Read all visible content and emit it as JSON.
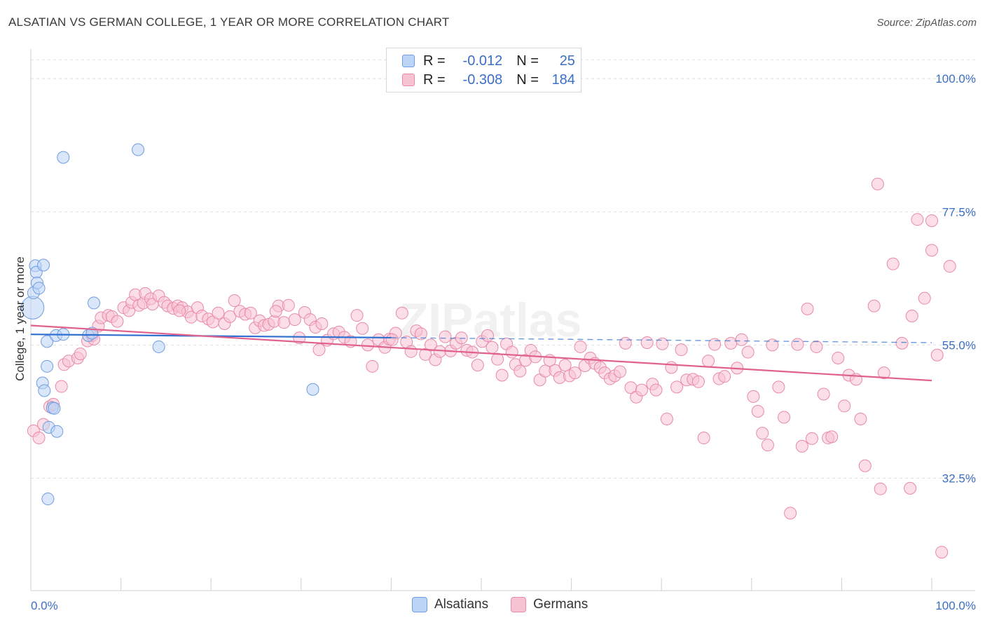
{
  "title": "ALSATIAN VS GERMAN COLLEGE, 1 YEAR OR MORE CORRELATION CHART",
  "source": "Source: ZipAtlas.com",
  "watermark": "ZIPatlas",
  "legend": {
    "rows": [
      {
        "r_label": "R =",
        "r_value": "-0.012",
        "n_label": "N =",
        "n_value": "25"
      },
      {
        "r_label": "R =",
        "r_value": "-0.308",
        "n_label": "N =",
        "n_value": "184"
      }
    ]
  },
  "bottom_legend": [
    "Alsatians",
    "Germans"
  ],
  "colors": {
    "alsatians_fill": "#bcd4f5",
    "alsatians_stroke": "#6f9ddf",
    "alsatians_line": "#2f6fcf",
    "germans_fill": "#f7c3d3",
    "germans_stroke": "#e88aa8",
    "germans_line": "#e0628c",
    "tick_label": "#3b6fc4",
    "grid": "#dddddd"
  },
  "chart_data": {
    "type": "scatter",
    "title": "ALSATIAN VS GERMAN COLLEGE, 1 YEAR OR MORE CORRELATION CHART",
    "xlabel": "",
    "ylabel": "College, 1 year or more",
    "xlim": [
      0,
      100
    ],
    "ylim": [
      13.5,
      105
    ],
    "x_tick_labels": [
      "0.0%",
      "100.0%"
    ],
    "y_ticks": [
      {
        "value": 100,
        "label": "100.0%"
      },
      {
        "value": 77.5,
        "label": "77.5%"
      },
      {
        "value": 55,
        "label": "55.0%"
      },
      {
        "value": 32.5,
        "label": "32.5%"
      }
    ],
    "grid": true,
    "series": [
      {
        "name": "Alsatians",
        "trend": {
          "x0": 0,
          "y0": 56.8,
          "x1": 100,
          "y1": 55.4,
          "solid_until": 40
        },
        "points": [
          [
            0.2,
            61.3,
            1.9
          ],
          [
            0.3,
            63.8,
            1
          ],
          [
            0.5,
            68.4,
            1
          ],
          [
            0.6,
            67.3,
            1
          ],
          [
            0.7,
            65.5,
            1
          ],
          [
            0.9,
            64.6,
            1
          ],
          [
            1.4,
            68.5,
            1
          ],
          [
            1.8,
            51.4,
            1
          ],
          [
            1.3,
            48.6,
            1
          ],
          [
            1.5,
            47.3,
            1
          ],
          [
            1.8,
            55.6,
            1
          ],
          [
            2.4,
            44.4,
            1
          ],
          [
            2.0,
            41.1,
            1
          ],
          [
            2.9,
            40.4,
            1
          ],
          [
            2.8,
            56.6,
            1
          ],
          [
            3.6,
            56.8,
            1
          ],
          [
            1.9,
            29.0,
            1
          ],
          [
            3.6,
            86.7,
            1
          ],
          [
            7.0,
            62.1,
            1
          ],
          [
            6.4,
            56.6,
            1
          ],
          [
            11.9,
            88.0,
            1
          ],
          [
            14.2,
            54.7,
            1
          ],
          [
            31.3,
            47.5,
            1
          ],
          [
            2.6,
            44.3,
            1
          ],
          [
            6.8,
            57.0,
            1
          ]
        ]
      },
      {
        "name": "Germans",
        "trend": {
          "x0": 0,
          "y0": 58.3,
          "x1": 100,
          "y1": 49.0
        },
        "points": [
          [
            0.3,
            40.5,
            1
          ],
          [
            0.9,
            39.3,
            1
          ],
          [
            1.4,
            41.6,
            1
          ],
          [
            2.1,
            44.6,
            1
          ],
          [
            2.5,
            45.0,
            1
          ],
          [
            3.4,
            48.0,
            1
          ],
          [
            3.7,
            51.7,
            1
          ],
          [
            4.2,
            52.3,
            1
          ],
          [
            5.2,
            52.8,
            1
          ],
          [
            5.5,
            53.5,
            1
          ],
          [
            6.3,
            55.7,
            1
          ],
          [
            6.8,
            56.6,
            1
          ],
          [
            7.0,
            56.0,
            1
          ],
          [
            7.5,
            58.2,
            1
          ],
          [
            7.8,
            59.6,
            1
          ],
          [
            8.6,
            60.0,
            1
          ],
          [
            9.0,
            59.8,
            1
          ],
          [
            9.6,
            59.0,
            1
          ],
          [
            10.3,
            61.3,
            1
          ],
          [
            10.9,
            60.8,
            1
          ],
          [
            11.2,
            62.2,
            1
          ],
          [
            11.6,
            63.5,
            1
          ],
          [
            12.0,
            61.7,
            1
          ],
          [
            12.5,
            62.1,
            1
          ],
          [
            12.7,
            63.7,
            1
          ],
          [
            13.3,
            62.8,
            1
          ],
          [
            13.5,
            61.9,
            1
          ],
          [
            14.2,
            63.3,
            1
          ],
          [
            14.8,
            62.2,
            1
          ],
          [
            15.2,
            61.6,
            1
          ],
          [
            15.8,
            61.2,
            1
          ],
          [
            16.3,
            61.6,
            1
          ],
          [
            16.8,
            61.3,
            1
          ],
          [
            17.4,
            60.6,
            1
          ],
          [
            17.8,
            59.7,
            1
          ],
          [
            18.5,
            61.3,
            1
          ],
          [
            19.0,
            59.9,
            1
          ],
          [
            19.7,
            59.4,
            1
          ],
          [
            20.2,
            58.9,
            1
          ],
          [
            20.8,
            60.4,
            1
          ],
          [
            21.5,
            58.6,
            1
          ],
          [
            22.1,
            59.8,
            1
          ],
          [
            22.6,
            62.5,
            1
          ],
          [
            23.2,
            60.7,
            1
          ],
          [
            23.8,
            60.2,
            1
          ],
          [
            24.4,
            60.4,
            1
          ],
          [
            24.9,
            57.9,
            1
          ],
          [
            25.4,
            59.1,
            1
          ],
          [
            25.9,
            58.3,
            1
          ],
          [
            26.4,
            58.5,
            1
          ],
          [
            27.0,
            59.0,
            1
          ],
          [
            27.5,
            61.6,
            1
          ],
          [
            28.1,
            58.8,
            1
          ],
          [
            28.6,
            61.7,
            1
          ],
          [
            29.3,
            59.3,
            1
          ],
          [
            29.8,
            56.2,
            1
          ],
          [
            30.4,
            60.5,
            1
          ],
          [
            31.0,
            59.3,
            1
          ],
          [
            31.6,
            58.0,
            1
          ],
          [
            32.3,
            58.6,
            1
          ],
          [
            32.0,
            54.2,
            1
          ],
          [
            32.9,
            55.8,
            1
          ],
          [
            33.6,
            56.9,
            1
          ],
          [
            34.2,
            57.2,
            1
          ],
          [
            34.8,
            56.3,
            1
          ],
          [
            35.5,
            55.6,
            1
          ],
          [
            36.2,
            60.0,
            1
          ],
          [
            36.8,
            57.8,
            1
          ],
          [
            37.4,
            55.0,
            1
          ],
          [
            37.9,
            51.4,
            1
          ],
          [
            38.6,
            55.9,
            1
          ],
          [
            39.3,
            54.6,
            1
          ],
          [
            39.8,
            56.0,
            1
          ],
          [
            40.5,
            57.0,
            1
          ],
          [
            41.2,
            60.4,
            1
          ],
          [
            41.7,
            55.5,
            1
          ],
          [
            42.2,
            53.9,
            1
          ],
          [
            42.8,
            57.4,
            1
          ],
          [
            43.3,
            56.9,
            1
          ],
          [
            43.8,
            53.4,
            1
          ],
          [
            44.4,
            55.0,
            1
          ],
          [
            44.9,
            52.5,
            1
          ],
          [
            45.4,
            53.9,
            1
          ],
          [
            46.0,
            56.4,
            1
          ],
          [
            46.6,
            54.0,
            1
          ],
          [
            47.2,
            55.3,
            1
          ],
          [
            47.8,
            56.2,
            1
          ],
          [
            48.4,
            54.1,
            1
          ],
          [
            49.0,
            53.8,
            1
          ],
          [
            49.6,
            51.6,
            1
          ],
          [
            50.1,
            55.6,
            1
          ],
          [
            50.7,
            56.6,
            1
          ],
          [
            51.2,
            54.6,
            1
          ],
          [
            51.8,
            52.6,
            1
          ],
          [
            52.3,
            49.9,
            1
          ],
          [
            52.8,
            55.2,
            1
          ],
          [
            53.4,
            53.8,
            1
          ],
          [
            53.8,
            51.7,
            1
          ],
          [
            54.3,
            50.6,
            1
          ],
          [
            54.9,
            52.4,
            1
          ],
          [
            55.5,
            54.1,
            1
          ],
          [
            56.0,
            53.0,
            1
          ],
          [
            56.5,
            49.1,
            1
          ],
          [
            57.1,
            50.6,
            1
          ],
          [
            57.6,
            52.4,
            1
          ],
          [
            58.2,
            50.7,
            1
          ],
          [
            58.7,
            49.5,
            1
          ],
          [
            59.3,
            51.6,
            1
          ],
          [
            59.8,
            49.8,
            1
          ],
          [
            60.4,
            50.3,
            1
          ],
          [
            61.0,
            54.7,
            1
          ],
          [
            61.5,
            51.5,
            1
          ],
          [
            62.1,
            52.8,
            1
          ],
          [
            62.6,
            51.9,
            1
          ],
          [
            63.2,
            51.2,
            1
          ],
          [
            63.7,
            50.3,
            1
          ],
          [
            64.3,
            49.3,
            1
          ],
          [
            64.8,
            49.8,
            1
          ],
          [
            65.4,
            50.5,
            1
          ],
          [
            66.0,
            55.3,
            1
          ],
          [
            66.6,
            47.8,
            1
          ],
          [
            67.2,
            46.2,
            1
          ],
          [
            67.8,
            47.4,
            1
          ],
          [
            68.4,
            55.4,
            1
          ],
          [
            69.0,
            48.4,
            1
          ],
          [
            69.4,
            47.4,
            1
          ],
          [
            70.1,
            55.2,
            1
          ],
          [
            70.6,
            42.5,
            1
          ],
          [
            71.1,
            51.2,
            1
          ],
          [
            71.7,
            47.9,
            1
          ],
          [
            72.2,
            54.2,
            1
          ],
          [
            72.8,
            49.1,
            1
          ],
          [
            73.5,
            49.2,
            1
          ],
          [
            74.1,
            48.8,
            1
          ],
          [
            74.7,
            39.3,
            1
          ],
          [
            75.2,
            52.3,
            1
          ],
          [
            75.9,
            55.1,
            1
          ],
          [
            76.4,
            49.3,
            1
          ],
          [
            77.0,
            49.7,
            1
          ],
          [
            77.7,
            55.3,
            1
          ],
          [
            78.4,
            51.1,
            1
          ],
          [
            78.9,
            55.9,
            1
          ],
          [
            79.6,
            53.8,
            1
          ],
          [
            80.2,
            46.3,
            1
          ],
          [
            80.7,
            43.8,
            1
          ],
          [
            81.2,
            40.1,
            1
          ],
          [
            81.8,
            38.1,
            1
          ],
          [
            82.3,
            55.0,
            1
          ],
          [
            83.0,
            47.9,
            1
          ],
          [
            83.6,
            42.8,
            1
          ],
          [
            84.3,
            26.6,
            1
          ],
          [
            85.1,
            55.1,
            1
          ],
          [
            85.6,
            37.9,
            1
          ],
          [
            86.2,
            61.1,
            1
          ],
          [
            86.7,
            39.2,
            1
          ],
          [
            87.2,
            54.7,
            1
          ],
          [
            88.0,
            46.7,
            1
          ],
          [
            88.5,
            39.3,
            1
          ],
          [
            88.9,
            39.5,
            1
          ],
          [
            89.6,
            52.8,
            1
          ],
          [
            90.3,
            44.7,
            1
          ],
          [
            90.8,
            49.9,
            1
          ],
          [
            91.6,
            49.2,
            1
          ],
          [
            92.1,
            42.5,
            1
          ],
          [
            92.6,
            34.6,
            1
          ],
          [
            93.6,
            61.6,
            1
          ],
          [
            94.0,
            82.2,
            1
          ],
          [
            94.3,
            30.7,
            1
          ],
          [
            94.7,
            50.3,
            1
          ],
          [
            95.7,
            68.7,
            1
          ],
          [
            96.7,
            55.3,
            1
          ],
          [
            97.6,
            30.8,
            1
          ],
          [
            97.8,
            59.9,
            1
          ],
          [
            98.4,
            76.2,
            1
          ],
          [
            99.2,
            62.9,
            1
          ],
          [
            100.0,
            76.0,
            1
          ],
          [
            100.6,
            53.3,
            1
          ],
          [
            101.1,
            20.0,
            1
          ],
          [
            102.0,
            68.3,
            1
          ],
          [
            100.0,
            71.0,
            1
          ],
          [
            40.1,
            55.9,
            1
          ],
          [
            27.2,
            60.7,
            1
          ],
          [
            16.5,
            60.8,
            1
          ]
        ]
      }
    ]
  }
}
